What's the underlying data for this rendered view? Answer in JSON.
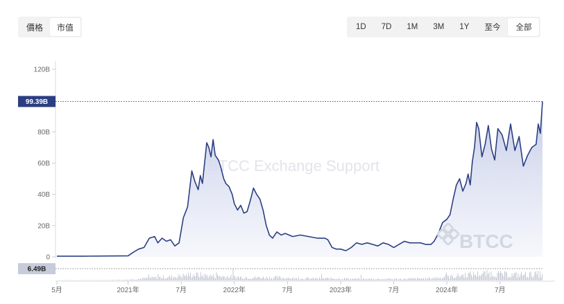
{
  "toolbar": {
    "metric_tabs": [
      {
        "label": "價格",
        "active": false
      },
      {
        "label": "市值",
        "active": true
      }
    ],
    "range_tabs": [
      {
        "label": "1D",
        "active": false
      },
      {
        "label": "7D",
        "active": false
      },
      {
        "label": "1M",
        "active": false
      },
      {
        "label": "3M",
        "active": false
      },
      {
        "label": "1Y",
        "active": false
      },
      {
        "label": "至今",
        "active": false
      },
      {
        "label": "全部",
        "active": true
      }
    ]
  },
  "watermark": "BTCC Exchange Support",
  "logo": {
    "text": "BTCC"
  },
  "colors": {
    "line": "#2b3e82",
    "area_top": "#c3cae6",
    "area_bottom": "#f4f6fc",
    "badge": "#2b3e82",
    "volume_badge": "#c7ccda",
    "volume_bars": "#c6cad6"
  },
  "chart_data": {
    "type": "area",
    "unit": "B",
    "ylim": [
      0,
      120
    ],
    "y_ticks": [
      "0",
      "20B",
      "40B",
      "60B",
      "80B",
      "100B",
      "120B"
    ],
    "x_ticks": [
      {
        "label": "5月",
        "t": 2020.33
      },
      {
        "label": "2021年",
        "t": 2021.0
      },
      {
        "label": "7月",
        "t": 2021.5
      },
      {
        "label": "2022年",
        "t": 2022.0
      },
      {
        "label": "7月",
        "t": 2022.5
      },
      {
        "label": "2023年",
        "t": 2023.0
      },
      {
        "label": "7月",
        "t": 2023.5
      },
      {
        "label": "2024年",
        "t": 2024.0
      },
      {
        "label": "7月",
        "t": 2024.5
      }
    ],
    "current_value_label": "99.39B",
    "current_value": 99.39,
    "volume_label": "6.49B",
    "series": [
      {
        "t": [
          2020.33,
          2020.6,
          2020.9,
          2021.0,
          2021.05,
          2021.1,
          2021.15,
          2021.2,
          2021.25,
          2021.28,
          2021.32,
          2021.36,
          2021.4,
          2021.44,
          2021.48,
          2021.52,
          2021.56,
          2021.6,
          2021.63,
          2021.66,
          2021.68,
          2021.7,
          2021.72,
          2021.74,
          2021.76,
          2021.78,
          2021.8,
          2021.82,
          2021.85,
          2021.87,
          2021.9,
          2021.92,
          2021.95,
          2021.98,
          2022.0,
          2022.03,
          2022.06,
          2022.09,
          2022.12,
          2022.15,
          2022.18,
          2022.21,
          2022.24,
          2022.27,
          2022.3,
          2022.33,
          2022.36,
          2022.4,
          2022.44,
          2022.48,
          2022.55,
          2022.62,
          2022.7,
          2022.78,
          2022.85,
          2022.88,
          2022.92,
          2022.96,
          2023.0,
          2023.05,
          2023.1,
          2023.15,
          2023.2,
          2023.25,
          2023.3,
          2023.35,
          2023.4,
          2023.45,
          2023.5,
          2023.55,
          2023.6,
          2023.65,
          2023.7,
          2023.75,
          2023.8,
          2023.85,
          2023.88,
          2023.92,
          2023.96,
          2024.0,
          2024.03,
          2024.06,
          2024.09,
          2024.12,
          2024.15,
          2024.18,
          2024.2,
          2024.22,
          2024.24,
          2024.26,
          2024.28,
          2024.3,
          2024.33,
          2024.36,
          2024.39,
          2024.42,
          2024.45,
          2024.48,
          2024.52,
          2024.56,
          2024.6,
          2024.64,
          2024.68,
          2024.72,
          2024.76,
          2024.8,
          2024.84,
          2024.86,
          2024.88,
          2024.9
        ],
        "values": [
          0.5,
          0.5,
          0.6,
          0.7,
          3,
          5,
          6,
          12,
          13,
          9,
          12,
          10,
          11,
          7,
          9,
          25,
          32,
          55,
          48,
          43,
          52,
          47,
          60,
          73,
          70,
          64,
          75,
          65,
          62,
          58,
          50,
          47,
          45,
          40,
          34,
          30,
          33,
          28,
          29,
          36,
          44,
          40,
          37,
          30,
          20,
          14,
          12,
          16,
          14,
          15,
          13,
          14,
          13,
          12,
          12,
          11,
          6,
          5,
          5,
          4,
          6,
          9,
          8,
          9,
          8,
          7,
          9,
          8,
          6,
          8,
          10,
          9,
          9,
          9,
          8,
          8,
          10,
          15,
          22,
          24,
          27,
          37,
          46,
          50,
          42,
          47,
          53,
          46,
          61,
          70,
          86,
          82,
          64,
          72,
          84,
          69,
          62,
          82,
          78,
          68,
          85,
          68,
          77,
          58,
          65,
          70,
          72,
          85,
          79,
          99.39
        ]
      }
    ],
    "volume": {
      "t": [
        2020.33,
        2020.8,
        2021.0,
        2021.2,
        2021.4,
        2021.6,
        2021.8,
        2022.0,
        2022.2,
        2022.4,
        2022.6,
        2022.8,
        2023.0,
        2023.2,
        2023.4,
        2023.6,
        2023.8,
        2024.0,
        2024.2,
        2024.4,
        2024.6,
        2024.8,
        2024.9
      ],
      "values": [
        0.2,
        0.3,
        0.8,
        2.5,
        3.5,
        6.0,
        4.5,
        3.5,
        3.0,
        3.0,
        2.0,
        2.0,
        2.0,
        1.5,
        1.5,
        1.5,
        2.0,
        3.5,
        6.0,
        7.0,
        5.5,
        6.0,
        6.49
      ],
      "max": 20
    }
  }
}
